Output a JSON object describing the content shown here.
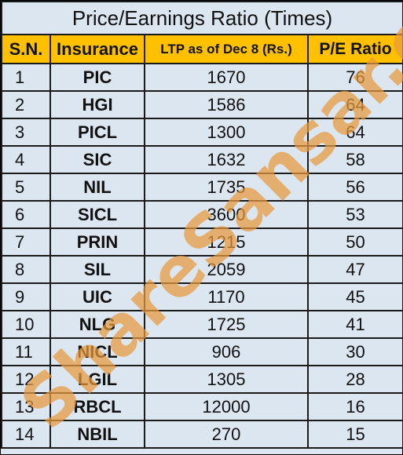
{
  "title": "Price/Earnings Ratio (Times)",
  "headers": {
    "sn": "S.N.",
    "insurance": "Insurance",
    "ltp": "LTP as of Dec 8 (Rs.)",
    "pe": "P/E Ratio"
  },
  "rows": [
    {
      "sn": "1",
      "insurance": "PIC",
      "ltp": "1670",
      "pe": "76"
    },
    {
      "sn": "2",
      "insurance": "HGI",
      "ltp": "1586",
      "pe": "64"
    },
    {
      "sn": "3",
      "insurance": "PICL",
      "ltp": "1300",
      "pe": "64"
    },
    {
      "sn": "4",
      "insurance": "SIC",
      "ltp": "1632",
      "pe": "58"
    },
    {
      "sn": "5",
      "insurance": "NIL",
      "ltp": "1735",
      "pe": "56"
    },
    {
      "sn": "6",
      "insurance": "SICL",
      "ltp": "3600",
      "pe": "53"
    },
    {
      "sn": "7",
      "insurance": "PRIN",
      "ltp": "1215",
      "pe": "50"
    },
    {
      "sn": "8",
      "insurance": "SIL",
      "ltp": "2059",
      "pe": "47"
    },
    {
      "sn": "9",
      "insurance": "UIC",
      "ltp": "1170",
      "pe": "45"
    },
    {
      "sn": "10",
      "insurance": "NLG",
      "ltp": "1725",
      "pe": "41"
    },
    {
      "sn": "11",
      "insurance": "NICL",
      "ltp": "906",
      "pe": "30"
    },
    {
      "sn": "12",
      "insurance": "LGIL",
      "ltp": "1305",
      "pe": "28"
    },
    {
      "sn": "13",
      "insurance": "RBCL",
      "ltp": "12000",
      "pe": "16"
    },
    {
      "sn": "14",
      "insurance": "NBIL",
      "ltp": "270",
      "pe": "15"
    }
  ],
  "watermark": "ShareSansar.com",
  "colors": {
    "header_bg": "#ffc000",
    "cell_bg": "#dce6f1",
    "watermark": "#e89a3c"
  }
}
